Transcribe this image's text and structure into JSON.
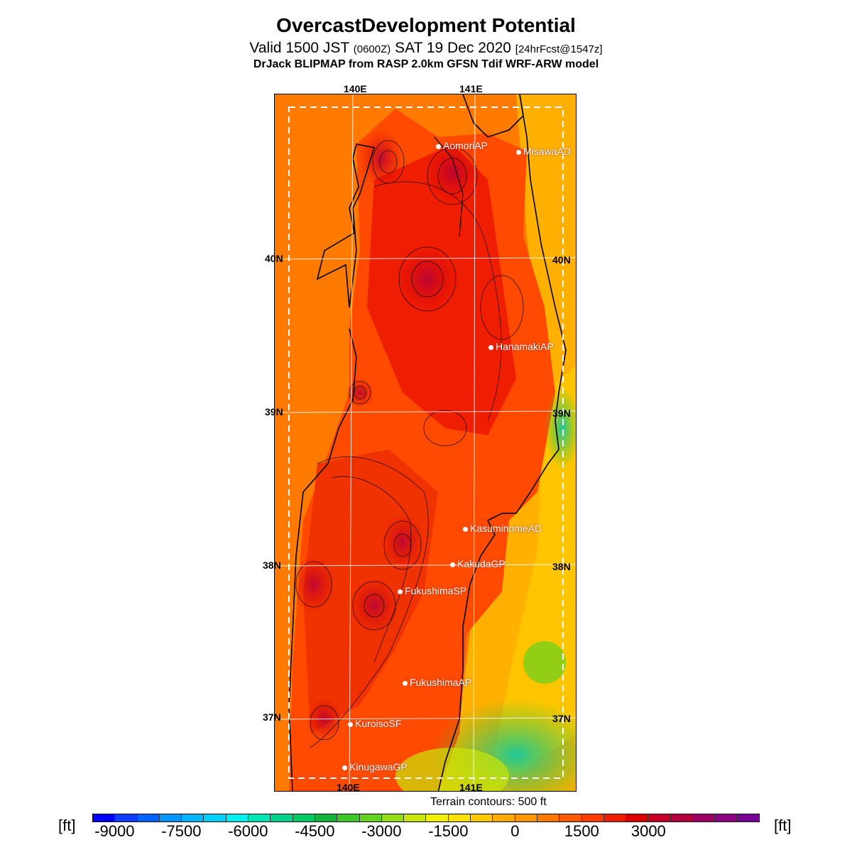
{
  "title": "OvercastDevelopment Potential",
  "subtitle": {
    "valid_prefix": "Valid 1500 JST",
    "utc": "(0600Z)",
    "date": "SAT 19 Dec 2020",
    "forecast": "[24hrFcst@1547z]"
  },
  "model_line": "DrJack BLIPMAP from RASP 2.0km GFSN Tdif WRF-ARW model",
  "axes": {
    "lon_top": [
      "140E",
      "141E"
    ],
    "lon_bottom": [
      "140E",
      "141E"
    ],
    "lat_left": [
      "40N",
      "39N",
      "38N",
      "37N"
    ],
    "lat_right": [
      "40N",
      "39N",
      "38N",
      "37N"
    ]
  },
  "stations": [
    {
      "name": "AomoriAP"
    },
    {
      "name": "MisawaAD"
    },
    {
      "name": "HanamakiAP"
    },
    {
      "name": "KasuminomeAD"
    },
    {
      "name": "KakudaGP"
    },
    {
      "name": "FukushimaSP"
    },
    {
      "name": "FukushimaAP"
    },
    {
      "name": "KuroisoSF"
    },
    {
      "name": "KinugawaGP"
    }
  ],
  "terrain_note": "Terrain contours: 500 ft",
  "colorbar": {
    "unit_left": "[ft]",
    "unit_right": "[ft]",
    "tick_labels": [
      "-9000",
      "-7500",
      "-6000",
      "-4500",
      "-3000",
      "-1500",
      "0",
      "1500",
      "3000"
    ],
    "colors": [
      "#0000ff",
      "#0f3cff",
      "#0064ff",
      "#0096ff",
      "#00b4ff",
      "#00d2ff",
      "#00f0f0",
      "#00e6b4",
      "#00d28c",
      "#00c864",
      "#14b43c",
      "#3cc828",
      "#64d21e",
      "#96dc14",
      "#c8e60a",
      "#f0f000",
      "#ffe100",
      "#ffc800",
      "#ffaa00",
      "#ff9600",
      "#ff7800",
      "#ff5a00",
      "#ff3c00",
      "#f01e00",
      "#dc0000",
      "#c80028",
      "#b4003c",
      "#a00064",
      "#8c0082",
      "#780096"
    ]
  }
}
